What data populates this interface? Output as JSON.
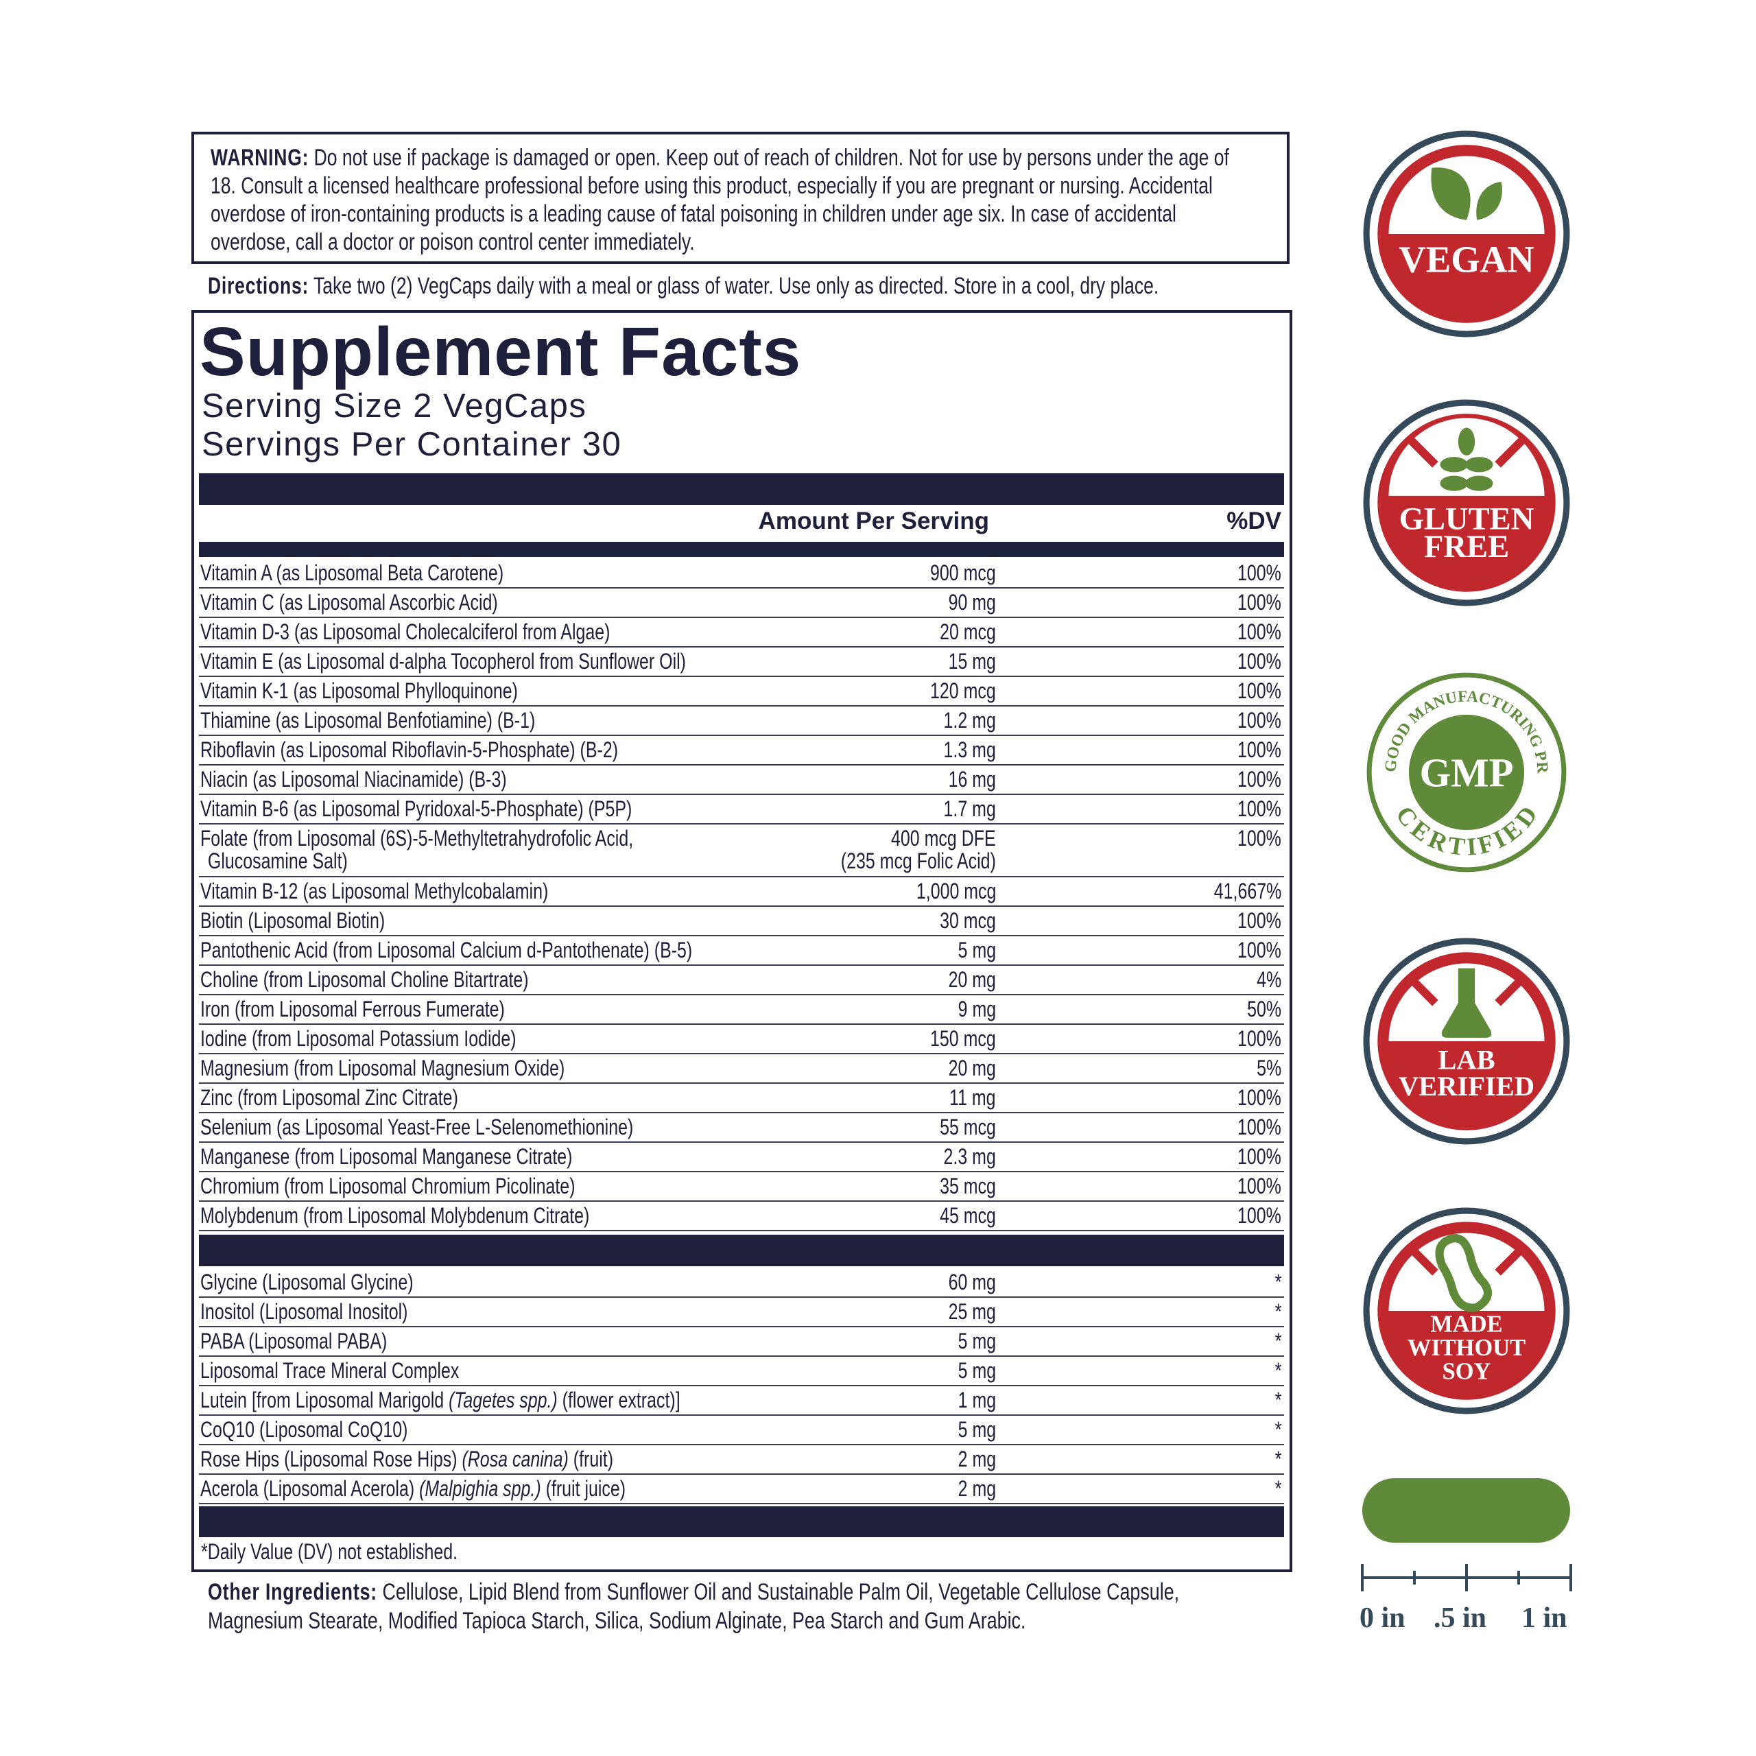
{
  "warning": {
    "label": "WARNING:",
    "text": "Do not use if package is damaged or open. Keep out of reach of children. Not for use by persons under the age of 18. Consult a licensed healthcare professional before using this product, especially if you are pregnant or nursing. Accidental overdose of iron-containing products is a leading cause of fatal poisoning in children under age six. In case of accidental overdose, call a doctor or poison control center immediately."
  },
  "directions": {
    "label": "Directions:",
    "text": "Take two (2) VegCaps daily with a meal or glass of water. Use only as directed. Store in a cool, dry place."
  },
  "facts": {
    "title": "Supplement Facts",
    "serving_size": "Serving Size 2 VegCaps",
    "servings_per_container": "Servings Per Container 30",
    "col_amount": "Amount Per Serving",
    "col_dv": "%DV",
    "rows": [
      {
        "name": "Vitamin A (as Liposomal Beta Carotene)",
        "amount": "900 mcg",
        "dv": "100%"
      },
      {
        "name": "Vitamin C (as Liposomal Ascorbic Acid)",
        "amount": "90 mg",
        "dv": "100%"
      },
      {
        "name": "Vitamin D-3 (as Liposomal Cholecalciferol from Algae)",
        "amount": "20 mcg",
        "dv": "100%"
      },
      {
        "name": "Vitamin E (as Liposomal d-alpha Tocopherol from Sunflower Oil)",
        "amount": "15 mg",
        "dv": "100%"
      },
      {
        "name": "Vitamin K-1 (as Liposomal Phylloquinone)",
        "amount": "120 mcg",
        "dv": "100%"
      },
      {
        "name": "Thiamine (as Liposomal Benfotiamine) (B-1)",
        "amount": "1.2 mg",
        "dv": "100%"
      },
      {
        "name": "Riboflavin (as Liposomal Riboflavin-5-Phosphate) (B-2)",
        "amount": "1.3 mg",
        "dv": "100%"
      },
      {
        "name": "Niacin (as Liposomal Niacinamide) (B-3)",
        "amount": "16 mg",
        "dv": "100%"
      },
      {
        "name": "Vitamin B-6 (as Liposomal Pyridoxal-5-Phosphate) (P5P)",
        "amount": "1.7 mg",
        "dv": "100%"
      },
      {
        "name": "Folate (from Liposomal (6S)-5-Methyltetrahydrofolic Acid,",
        "name2": "Glucosamine Salt)",
        "amount": "400 mcg DFE",
        "amount2": "(235 mcg Folic Acid)",
        "dv": "100%"
      },
      {
        "name": "Vitamin B-12 (as Liposomal Methylcobalamin)",
        "amount": "1,000 mcg",
        "dv": "41,667%"
      },
      {
        "name": "Biotin (Liposomal Biotin)",
        "amount": "30 mcg",
        "dv": "100%"
      },
      {
        "name": "Pantothenic Acid (from Liposomal Calcium d-Pantothenate) (B-5)",
        "amount": "5 mg",
        "dv": "100%"
      },
      {
        "name": "Choline (from Liposomal Choline Bitartrate)",
        "amount": "20 mg",
        "dv": "4%"
      },
      {
        "name": "Iron (from Liposomal Ferrous Fumerate)",
        "amount": "9 mg",
        "dv": "50%"
      },
      {
        "name": "Iodine (from Liposomal Potassium Iodide)",
        "amount": "150 mcg",
        "dv": "100%"
      },
      {
        "name": "Magnesium (from Liposomal Magnesium Oxide)",
        "amount": "20 mg",
        "dv": "5%"
      },
      {
        "name": "Zinc (from Liposomal Zinc Citrate)",
        "amount": "11 mg",
        "dv": "100%"
      },
      {
        "name": "Selenium (as Liposomal Yeast-Free L-Selenomethionine)",
        "amount": "55 mcg",
        "dv": "100%"
      },
      {
        "name": "Manganese (from Liposomal Manganese Citrate)",
        "amount": "2.3 mg",
        "dv": "100%"
      },
      {
        "name": "Chromium (from Liposomal Chromium Picolinate)",
        "amount": "35 mcg",
        "dv": "100%"
      },
      {
        "name": "Molybdenum (from Liposomal Molybdenum Citrate)",
        "amount": "45 mcg",
        "dv": "100%"
      }
    ],
    "rows2": [
      {
        "name": "Glycine (Liposomal Glycine)",
        "amount": "60 mg",
        "dv": "*"
      },
      {
        "name": "Inositol (Liposomal Inositol)",
        "amount": "25 mg",
        "dv": "*"
      },
      {
        "name": "PABA (Liposomal PABA)",
        "amount": "5 mg",
        "dv": "*"
      },
      {
        "name": "Liposomal Trace Mineral Complex",
        "amount": "5 mg",
        "dv": "*"
      },
      {
        "name": "Lutein [from Liposomal Marigold ",
        "latin": "(Tagetes spp.)",
        "suffix": " (flower extract)]",
        "amount": "1 mg",
        "dv": "*"
      },
      {
        "name": "CoQ10 (Liposomal CoQ10)",
        "amount": "5 mg",
        "dv": "*"
      },
      {
        "name": "Rose Hips (Liposomal Rose Hips) ",
        "latin": "(Rosa canina)",
        "suffix": " (fruit)",
        "amount": "2 mg",
        "dv": "*"
      },
      {
        "name": "Acerola (Liposomal Acerola) ",
        "latin": "(Malpighia spp.)",
        "suffix": " (fruit juice)",
        "amount": "2 mg",
        "dv": "*"
      }
    ],
    "footnote": "*Daily Value (DV) not established."
  },
  "other_ingredients": {
    "label": "Other Ingredients:",
    "text": "Cellulose, Lipid Blend from Sunflower Oil and Sustainable Palm Oil, Vegetable Cellulose Capsule, Magnesium Stearate, Modified Tapioca Starch, Silica, Sodium Alginate, Pea Starch and Gum Arabic."
  },
  "badges": {
    "vegan": {
      "line1": "VEGAN",
      "icon": "leaf-icon"
    },
    "gluten": {
      "line1": "GLUTEN",
      "line2": "FREE",
      "icon": "wheat-icon"
    },
    "gmp": {
      "arc_top": "GOOD MANUFACTURING PRACTICE",
      "center": "GMP",
      "arc_bottom": "CERTIFIED"
    },
    "lab": {
      "line1": "LAB",
      "line2": "VERIFIED",
      "icon": "flask-icon"
    },
    "soy": {
      "line1": "MADE",
      "line2": "WITHOUT",
      "line3": "SOY",
      "icon": "soybean-icon"
    }
  },
  "scale": {
    "labels": [
      "0 in",
      ".5 in",
      "1 in"
    ]
  },
  "colors": {
    "navy": "#1e1f3b",
    "badge_red": "#c0282d",
    "badge_ring": "#34495a",
    "green": "#5e8a3a"
  }
}
